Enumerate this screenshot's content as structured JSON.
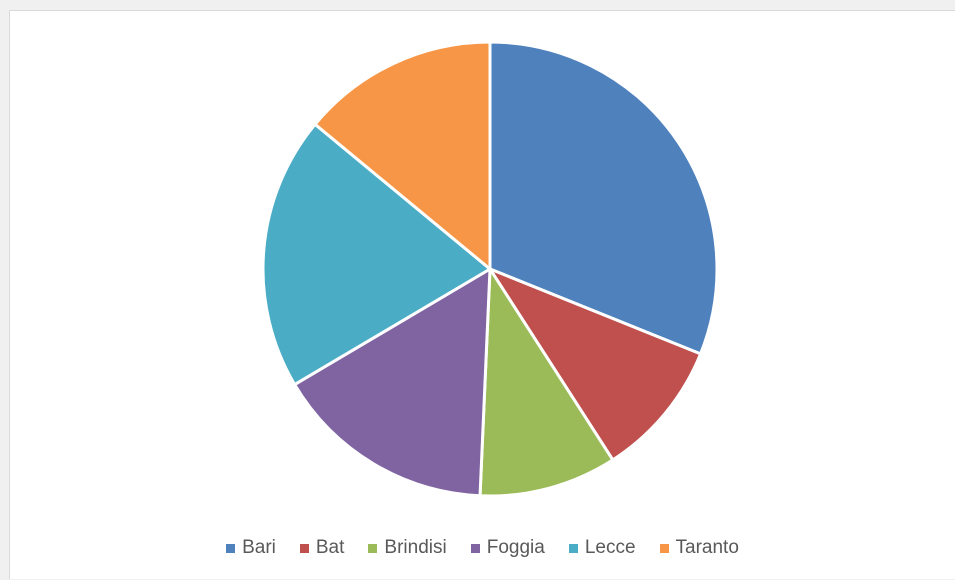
{
  "chart_data": {
    "type": "pie",
    "title": "",
    "legend_position": "bottom",
    "categories": [
      "Bari",
      "Bat",
      "Brindisi",
      "Foggia",
      "Lecce",
      "Taranto"
    ],
    "values": [
      31.1,
      9.8,
      9.8,
      15.8,
      19.5,
      14.0
    ],
    "colors": [
      "#4F81BD",
      "#C0504D",
      "#9BBB59",
      "#8064A2",
      "#4BACC6",
      "#F79646"
    ]
  }
}
